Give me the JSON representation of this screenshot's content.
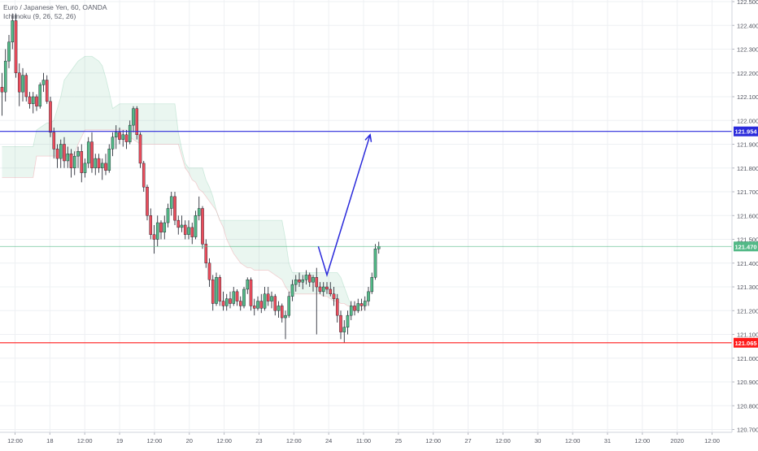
{
  "legend": {
    "symbol": "Euro / Japanese Yen, 60, OANDA",
    "indicator": "Ichimoku (9, 26, 52, 26)"
  },
  "colors": {
    "up": "#53b987",
    "down": "#eb4d5c",
    "wick": "#131722",
    "cloud_bull": "#53b987",
    "cloud_bear": "#eb4d5c",
    "target_line": "#2a2adb",
    "support_line": "#ff1a1a",
    "last_price_line": "#53b987",
    "grid": "#eef0f3",
    "axis_text": "#50535e"
  },
  "chart_data": {
    "type": "candlestick",
    "title": "Euro / Japanese Yen, 60, OANDA",
    "ylim": [
      120.695,
      122.5
    ],
    "y_ticks": [
      "122.500",
      "122.400",
      "122.300",
      "122.200",
      "122.100",
      "122.000",
      "121.900",
      "121.800",
      "121.700",
      "121.600",
      "121.500",
      "121.400",
      "121.300",
      "121.200",
      "121.100",
      "121.000",
      "120.900",
      "120.800",
      "120.700"
    ],
    "x_ticks": [
      "12:00",
      "18",
      "12:00",
      "19",
      "12:00",
      "20",
      "12:00",
      "23",
      "12:00",
      "24",
      "11:00",
      "25",
      "12:00",
      "27",
      "12:00",
      "30",
      "12:00",
      "31",
      "12:00",
      "2020",
      "12:00"
    ],
    "price_labels": [
      {
        "name": "target",
        "value": 121.954,
        "label": "121.954"
      },
      {
        "name": "last",
        "value": 121.47,
        "label": "121.470"
      },
      {
        "name": "support",
        "value": 121.065,
        "label": "121.065"
      }
    ],
    "projection": [
      {
        "x": 91.5,
        "y": 121.47
      },
      {
        "x": 94.0,
        "y": 121.35
      },
      {
        "x": 106.5,
        "y": 121.94
      }
    ],
    "cloud": {
      "x_start": 0,
      "span_a": [
        121.89,
        121.89,
        121.89,
        121.89,
        121.89,
        121.89,
        121.89,
        121.89,
        121.89,
        121.89,
        121.96,
        121.97,
        121.98,
        121.99,
        121.99,
        122.0,
        122.05,
        122.1,
        122.17,
        122.19,
        122.21,
        122.23,
        122.25,
        122.26,
        122.27,
        122.27,
        122.27,
        122.26,
        122.25,
        122.23,
        122.18,
        122.12,
        122.05,
        122.06,
        122.07,
        122.07,
        122.07,
        122.07,
        122.07,
        122.07,
        122.07,
        122.07,
        122.07,
        122.07,
        122.07,
        122.07,
        122.07,
        122.07,
        122.07,
        122.07,
        122.07,
        121.95,
        121.88,
        121.82,
        121.8,
        121.8,
        121.8,
        121.8,
        121.8,
        121.75,
        121.72,
        121.68,
        121.62,
        121.58,
        121.58,
        121.58,
        121.58,
        121.58,
        121.58,
        121.58,
        121.58,
        121.58,
        121.58,
        121.58,
        121.58,
        121.58,
        121.58,
        121.58,
        121.58,
        121.58,
        121.58,
        121.58,
        121.5,
        121.4,
        121.36,
        121.36,
        121.36,
        121.36,
        121.36,
        121.36,
        121.36,
        121.36,
        121.36,
        121.36,
        121.36,
        121.36,
        121.36,
        121.36,
        121.34,
        121.3,
        121.26,
        121.22,
        121.21,
        121.2,
        121.2,
        121.22,
        121.26,
        121.29
      ],
      "span_b": [
        121.76,
        121.76,
        121.76,
        121.76,
        121.76,
        121.76,
        121.76,
        121.76,
        121.76,
        121.76,
        121.85,
        121.85,
        121.85,
        121.85,
        121.85,
        121.85,
        121.85,
        121.85,
        121.85,
        121.85,
        121.85,
        121.86,
        121.9,
        121.93,
        121.96,
        121.96,
        121.96,
        121.96,
        121.96,
        121.96,
        121.96,
        121.96,
        121.96,
        121.96,
        121.96,
        121.96,
        121.96,
        121.93,
        121.92,
        121.91,
        121.9,
        121.9,
        121.9,
        121.9,
        121.9,
        121.9,
        121.9,
        121.9,
        121.9,
        121.9,
        121.9,
        121.9,
        121.85,
        121.8,
        121.78,
        121.75,
        121.74,
        121.71,
        121.7,
        121.68,
        121.66,
        121.64,
        121.62,
        121.58,
        121.55,
        121.5,
        121.47,
        121.44,
        121.42,
        121.4,
        121.39,
        121.38,
        121.38,
        121.37,
        121.37,
        121.37,
        121.37,
        121.37,
        121.36,
        121.35,
        121.34,
        121.33,
        121.3,
        121.28,
        121.27,
        121.27,
        121.27,
        121.27,
        121.27,
        121.27,
        121.27,
        121.27,
        121.27,
        121.26,
        121.26,
        121.25,
        121.24,
        121.24,
        121.23,
        121.23,
        121.22,
        121.22,
        121.21,
        121.2,
        121.2,
        121.22,
        121.26,
        121.29
      ]
    },
    "candles": [
      {
        "o": 122.14,
        "h": 122.2,
        "l": 122.02,
        "c": 122.12
      },
      {
        "o": 122.12,
        "h": 122.3,
        "l": 122.08,
        "c": 122.25
      },
      {
        "o": 122.25,
        "h": 122.36,
        "l": 122.22,
        "c": 122.33
      },
      {
        "o": 122.33,
        "h": 122.45,
        "l": 122.3,
        "c": 122.42
      },
      {
        "o": 122.42,
        "h": 122.45,
        "l": 122.18,
        "c": 122.2
      },
      {
        "o": 122.2,
        "h": 122.24,
        "l": 122.06,
        "c": 122.12
      },
      {
        "o": 122.12,
        "h": 122.22,
        "l": 122.08,
        "c": 122.19
      },
      {
        "o": 122.19,
        "h": 122.2,
        "l": 122.08,
        "c": 122.1
      },
      {
        "o": 122.1,
        "h": 122.12,
        "l": 122.05,
        "c": 122.07
      },
      {
        "o": 122.07,
        "h": 122.12,
        "l": 122.03,
        "c": 122.1
      },
      {
        "o": 122.1,
        "h": 122.11,
        "l": 122.04,
        "c": 122.06
      },
      {
        "o": 122.06,
        "h": 122.16,
        "l": 122.05,
        "c": 122.15
      },
      {
        "o": 122.15,
        "h": 122.2,
        "l": 122.12,
        "c": 122.17
      },
      {
        "o": 122.17,
        "h": 122.19,
        "l": 122.07,
        "c": 122.08
      },
      {
        "o": 122.08,
        "h": 122.1,
        "l": 121.93,
        "c": 121.95
      },
      {
        "o": 121.95,
        "h": 121.97,
        "l": 121.84,
        "c": 121.88
      },
      {
        "o": 121.88,
        "h": 121.9,
        "l": 121.8,
        "c": 121.84
      },
      {
        "o": 121.84,
        "h": 121.92,
        "l": 121.8,
        "c": 121.9
      },
      {
        "o": 121.9,
        "h": 121.93,
        "l": 121.8,
        "c": 121.83
      },
      {
        "o": 121.83,
        "h": 121.89,
        "l": 121.8,
        "c": 121.86
      },
      {
        "o": 121.86,
        "h": 121.88,
        "l": 121.76,
        "c": 121.8
      },
      {
        "o": 121.8,
        "h": 121.87,
        "l": 121.77,
        "c": 121.85
      },
      {
        "o": 121.85,
        "h": 121.89,
        "l": 121.8,
        "c": 121.87
      },
      {
        "o": 121.87,
        "h": 121.9,
        "l": 121.74,
        "c": 121.78
      },
      {
        "o": 121.78,
        "h": 121.84,
        "l": 121.76,
        "c": 121.82
      },
      {
        "o": 121.82,
        "h": 121.93,
        "l": 121.8,
        "c": 121.91
      },
      {
        "o": 121.91,
        "h": 121.95,
        "l": 121.78,
        "c": 121.8
      },
      {
        "o": 121.8,
        "h": 121.86,
        "l": 121.77,
        "c": 121.84
      },
      {
        "o": 121.84,
        "h": 121.86,
        "l": 121.78,
        "c": 121.8
      },
      {
        "o": 121.8,
        "h": 121.84,
        "l": 121.75,
        "c": 121.82
      },
      {
        "o": 121.82,
        "h": 121.86,
        "l": 121.77,
        "c": 121.79
      },
      {
        "o": 121.79,
        "h": 121.9,
        "l": 121.78,
        "c": 121.88
      },
      {
        "o": 121.88,
        "h": 121.95,
        "l": 121.85,
        "c": 121.93
      },
      {
        "o": 121.93,
        "h": 121.98,
        "l": 121.88,
        "c": 121.95
      },
      {
        "o": 121.95,
        "h": 121.97,
        "l": 121.9,
        "c": 121.92
      },
      {
        "o": 121.92,
        "h": 121.96,
        "l": 121.89,
        "c": 121.94
      },
      {
        "o": 121.94,
        "h": 121.96,
        "l": 121.88,
        "c": 121.91
      },
      {
        "o": 121.91,
        "h": 122.0,
        "l": 121.9,
        "c": 121.98
      },
      {
        "o": 121.98,
        "h": 122.06,
        "l": 121.95,
        "c": 122.05
      },
      {
        "o": 122.05,
        "h": 122.06,
        "l": 121.92,
        "c": 121.94
      },
      {
        "o": 121.94,
        "h": 121.95,
        "l": 121.8,
        "c": 121.82
      },
      {
        "o": 121.82,
        "h": 121.83,
        "l": 121.7,
        "c": 121.72
      },
      {
        "o": 121.72,
        "h": 121.73,
        "l": 121.58,
        "c": 121.6
      },
      {
        "o": 121.6,
        "h": 121.63,
        "l": 121.5,
        "c": 121.52
      },
      {
        "o": 121.52,
        "h": 121.56,
        "l": 121.44,
        "c": 121.5
      },
      {
        "o": 121.5,
        "h": 121.6,
        "l": 121.47,
        "c": 121.57
      },
      {
        "o": 121.57,
        "h": 121.58,
        "l": 121.5,
        "c": 121.53
      },
      {
        "o": 121.53,
        "h": 121.6,
        "l": 121.5,
        "c": 121.57
      },
      {
        "o": 121.57,
        "h": 121.65,
        "l": 121.55,
        "c": 121.63
      },
      {
        "o": 121.63,
        "h": 121.7,
        "l": 121.6,
        "c": 121.68
      },
      {
        "o": 121.68,
        "h": 121.7,
        "l": 121.56,
        "c": 121.58
      },
      {
        "o": 121.58,
        "h": 121.6,
        "l": 121.52,
        "c": 121.55
      },
      {
        "o": 121.55,
        "h": 121.6,
        "l": 121.53,
        "c": 121.56
      },
      {
        "o": 121.56,
        "h": 121.58,
        "l": 121.5,
        "c": 121.52
      },
      {
        "o": 121.52,
        "h": 121.58,
        "l": 121.5,
        "c": 121.55
      },
      {
        "o": 121.55,
        "h": 121.57,
        "l": 121.48,
        "c": 121.51
      },
      {
        "o": 121.51,
        "h": 121.62,
        "l": 121.5,
        "c": 121.6
      },
      {
        "o": 121.6,
        "h": 121.68,
        "l": 121.58,
        "c": 121.63
      },
      {
        "o": 121.63,
        "h": 121.64,
        "l": 121.46,
        "c": 121.48
      },
      {
        "o": 121.48,
        "h": 121.5,
        "l": 121.38,
        "c": 121.4
      },
      {
        "o": 121.4,
        "h": 121.42,
        "l": 121.3,
        "c": 121.33
      },
      {
        "o": 121.33,
        "h": 121.35,
        "l": 121.2,
        "c": 121.23
      },
      {
        "o": 121.23,
        "h": 121.36,
        "l": 121.22,
        "c": 121.34
      },
      {
        "o": 121.34,
        "h": 121.35,
        "l": 121.22,
        "c": 121.24
      },
      {
        "o": 121.24,
        "h": 121.28,
        "l": 121.2,
        "c": 121.22
      },
      {
        "o": 121.22,
        "h": 121.27,
        "l": 121.2,
        "c": 121.25
      },
      {
        "o": 121.25,
        "h": 121.28,
        "l": 121.21,
        "c": 121.23
      },
      {
        "o": 121.23,
        "h": 121.3,
        "l": 121.22,
        "c": 121.28
      },
      {
        "o": 121.28,
        "h": 121.29,
        "l": 121.22,
        "c": 121.24
      },
      {
        "o": 121.24,
        "h": 121.26,
        "l": 121.2,
        "c": 121.22
      },
      {
        "o": 121.22,
        "h": 121.3,
        "l": 121.21,
        "c": 121.29
      },
      {
        "o": 121.29,
        "h": 121.34,
        "l": 121.27,
        "c": 121.33
      },
      {
        "o": 121.33,
        "h": 121.34,
        "l": 121.2,
        "c": 121.22
      },
      {
        "o": 121.22,
        "h": 121.25,
        "l": 121.18,
        "c": 121.21
      },
      {
        "o": 121.21,
        "h": 121.26,
        "l": 121.2,
        "c": 121.24
      },
      {
        "o": 121.24,
        "h": 121.27,
        "l": 121.19,
        "c": 121.21
      },
      {
        "o": 121.21,
        "h": 121.3,
        "l": 121.2,
        "c": 121.27
      },
      {
        "o": 121.27,
        "h": 121.3,
        "l": 121.22,
        "c": 121.24
      },
      {
        "o": 121.24,
        "h": 121.28,
        "l": 121.21,
        "c": 121.26
      },
      {
        "o": 121.26,
        "h": 121.27,
        "l": 121.18,
        "c": 121.2
      },
      {
        "o": 121.2,
        "h": 121.24,
        "l": 121.17,
        "c": 121.22
      },
      {
        "o": 121.22,
        "h": 121.23,
        "l": 121.15,
        "c": 121.17
      },
      {
        "o": 121.17,
        "h": 121.2,
        "l": 121.08,
        "c": 121.18
      },
      {
        "o": 121.18,
        "h": 121.28,
        "l": 121.17,
        "c": 121.26
      },
      {
        "o": 121.26,
        "h": 121.33,
        "l": 121.24,
        "c": 121.31
      },
      {
        "o": 121.31,
        "h": 121.35,
        "l": 121.28,
        "c": 121.33
      },
      {
        "o": 121.33,
        "h": 121.36,
        "l": 121.3,
        "c": 121.32
      },
      {
        "o": 121.32,
        "h": 121.35,
        "l": 121.29,
        "c": 121.33
      },
      {
        "o": 121.33,
        "h": 121.37,
        "l": 121.31,
        "c": 121.35
      },
      {
        "o": 121.35,
        "h": 121.36,
        "l": 121.3,
        "c": 121.32
      },
      {
        "o": 121.32,
        "h": 121.35,
        "l": 121.28,
        "c": 121.34
      },
      {
        "o": 121.34,
        "h": 121.38,
        "l": 121.1,
        "c": 121.3
      },
      {
        "o": 121.3,
        "h": 121.32,
        "l": 121.27,
        "c": 121.28
      },
      {
        "o": 121.28,
        "h": 121.32,
        "l": 121.26,
        "c": 121.3
      },
      {
        "o": 121.3,
        "h": 121.32,
        "l": 121.27,
        "c": 121.29
      },
      {
        "o": 121.29,
        "h": 121.32,
        "l": 121.26,
        "c": 121.27
      },
      {
        "o": 121.27,
        "h": 121.3,
        "l": 121.22,
        "c": 121.25
      },
      {
        "o": 121.25,
        "h": 121.27,
        "l": 121.15,
        "c": 121.18
      },
      {
        "o": 121.18,
        "h": 121.2,
        "l": 121.08,
        "c": 121.11
      },
      {
        "o": 121.11,
        "h": 121.16,
        "l": 121.065,
        "c": 121.13
      },
      {
        "o": 121.13,
        "h": 121.2,
        "l": 121.1,
        "c": 121.18
      },
      {
        "o": 121.18,
        "h": 121.24,
        "l": 121.16,
        "c": 121.22
      },
      {
        "o": 121.22,
        "h": 121.24,
        "l": 121.18,
        "c": 121.2
      },
      {
        "o": 121.2,
        "h": 121.25,
        "l": 121.19,
        "c": 121.23
      },
      {
        "o": 121.23,
        "h": 121.25,
        "l": 121.2,
        "c": 121.22
      },
      {
        "o": 121.22,
        "h": 121.26,
        "l": 121.2,
        "c": 121.24
      },
      {
        "o": 121.24,
        "h": 121.3,
        "l": 121.22,
        "c": 121.28
      },
      {
        "o": 121.28,
        "h": 121.36,
        "l": 121.27,
        "c": 121.34
      },
      {
        "o": 121.34,
        "h": 121.48,
        "l": 121.33,
        "c": 121.46
      },
      {
        "o": 121.46,
        "h": 121.49,
        "l": 121.44,
        "c": 121.47
      }
    ]
  }
}
